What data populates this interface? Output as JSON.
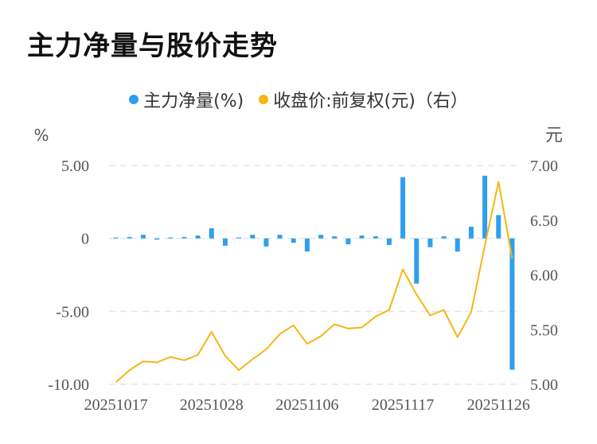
{
  "title": "主力净量与股价走势",
  "colors": {
    "bar": "#2f9ff0",
    "line": "#f5b614",
    "grid": "#e5e5e5",
    "axis_text": "#555555"
  },
  "chart_data": {
    "type": "bar+line",
    "legend": [
      {
        "label": "主力净量(%)",
        "color": "#2f9ff0"
      },
      {
        "label": "收盘价:前复权(元)（右）",
        "color": "#f5b614"
      }
    ],
    "left_unit": "%",
    "right_unit": "元",
    "left_ylim": [
      -10,
      5
    ],
    "right_ylim": [
      5,
      7
    ],
    "left_ticks": [
      {
        "value": 5,
        "label": "5.00"
      },
      {
        "value": 0,
        "label": "0"
      },
      {
        "value": -5,
        "label": "-5.00"
      },
      {
        "value": -10,
        "label": "-10.00"
      }
    ],
    "right_ticks": [
      {
        "value": 7,
        "label": "7.00"
      },
      {
        "value": 6.5,
        "label": "6.50"
      },
      {
        "value": 6,
        "label": "6.00"
      },
      {
        "value": 5.5,
        "label": "5.50"
      },
      {
        "value": 5,
        "label": "5.00"
      }
    ],
    "x_tick_labels": [
      {
        "index": 0,
        "label": "20251017"
      },
      {
        "index": 7,
        "label": "20251028"
      },
      {
        "index": 14,
        "label": "20251106"
      },
      {
        "index": 21,
        "label": "20251117"
      },
      {
        "index": 28,
        "label": "20251126"
      }
    ],
    "series": [
      {
        "name": "主力净量(%)",
        "type": "bar",
        "axis": "left",
        "values": [
          0.02,
          0.1,
          0.25,
          -0.08,
          0.03,
          0.1,
          0.2,
          0.7,
          -0.5,
          0.05,
          0.25,
          -0.55,
          0.25,
          -0.3,
          -0.9,
          0.25,
          0.15,
          -0.4,
          0.2,
          0.15,
          -0.45,
          4.2,
          -3.1,
          -0.6,
          0.15,
          -0.9,
          0.8,
          4.3,
          1.6,
          -9.0
        ]
      },
      {
        "name": "收盘价:前复权(元)（右）",
        "type": "line",
        "axis": "right",
        "values": [
          5.02,
          5.13,
          5.21,
          5.2,
          5.25,
          5.22,
          5.27,
          5.48,
          5.26,
          5.13,
          5.23,
          5.32,
          5.46,
          5.54,
          5.37,
          5.44,
          5.55,
          5.51,
          5.52,
          5.62,
          5.68,
          6.05,
          5.82,
          5.63,
          5.68,
          5.43,
          5.66,
          6.27,
          6.85,
          6.15
        ]
      }
    ]
  }
}
